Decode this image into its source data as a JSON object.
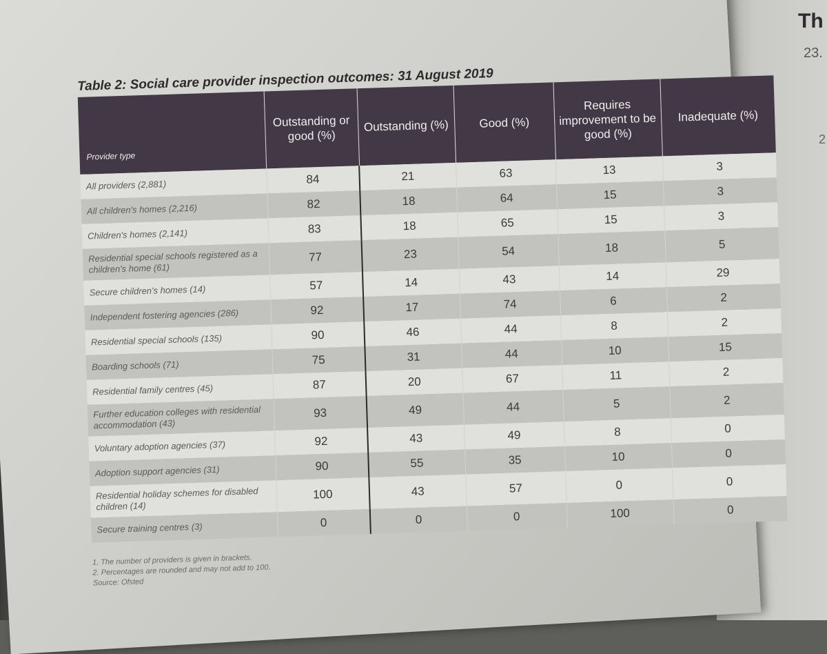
{
  "table": {
    "title": "Table 2: Social care provider inspection outcomes: 31 August 2019",
    "columns": [
      "Provider type",
      "Outstanding or good (%)",
      "Outstanding (%)",
      "Good (%)",
      "Requires improvement to be good (%)",
      "Inadequate (%)"
    ],
    "rows": [
      [
        "All providers (2,881)",
        "84",
        "21",
        "63",
        "13",
        "3"
      ],
      [
        "All children's homes (2,216)",
        "82",
        "18",
        "64",
        "15",
        "3"
      ],
      [
        "Children's homes (2,141)",
        "83",
        "18",
        "65",
        "15",
        "3"
      ],
      [
        "Residential special schools registered as a children's home (61)",
        "77",
        "23",
        "54",
        "18",
        "5"
      ],
      [
        "Secure children's homes (14)",
        "57",
        "14",
        "43",
        "14",
        "29"
      ],
      [
        "Independent fostering agencies (286)",
        "92",
        "17",
        "74",
        "6",
        "2"
      ],
      [
        "Residential special schools (135)",
        "90",
        "46",
        "44",
        "8",
        "2"
      ],
      [
        "Boarding schools (71)",
        "75",
        "31",
        "44",
        "10",
        "15"
      ],
      [
        "Residential family centres (45)",
        "87",
        "20",
        "67",
        "11",
        "2"
      ],
      [
        "Further education colleges with residential accommodation (43)",
        "93",
        "49",
        "44",
        "5",
        "2"
      ],
      [
        "Voluntary adoption agencies (37)",
        "92",
        "43",
        "49",
        "8",
        "0"
      ],
      [
        "Adoption support agencies (31)",
        "90",
        "55",
        "35",
        "10",
        "0"
      ],
      [
        "Residential holiday schemes for disabled children (14)",
        "100",
        "43",
        "57",
        "0",
        "0"
      ],
      [
        "Secure training centres (3)",
        "0",
        "0",
        "0",
        "100",
        "0"
      ]
    ],
    "notes": [
      "1. The number of providers is given in brackets.",
      "2. Percentages are rounded and may not add to 100.",
      "Source: Ofsted"
    ]
  },
  "facing_page": {
    "heading_fragment": "Th",
    "number_fragment": "23.",
    "mark_fragment": "2"
  }
}
